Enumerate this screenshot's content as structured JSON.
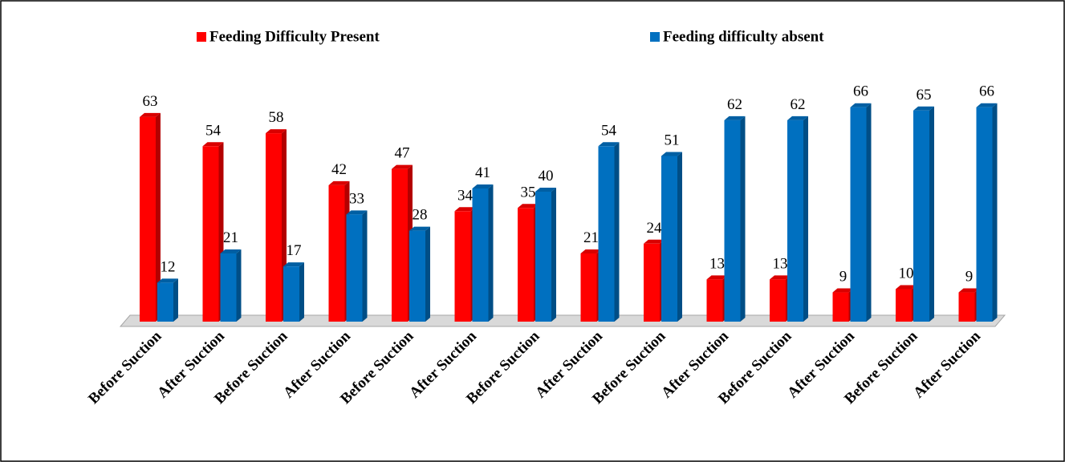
{
  "chart_data": {
    "type": "bar3d",
    "categories": [
      "Before Suction",
      "After Suction",
      "Before Suction",
      "After Suction",
      "Before Suction",
      "After Suction",
      "Before Suction",
      "After Suction",
      "Before Suction",
      "After Suction",
      "Before Suction",
      "After Suction",
      "Before Suction",
      "After Suction"
    ],
    "series": [
      {
        "name": "Feeding Difficulty Present",
        "color": "#ff0000",
        "values": [
          63,
          54,
          58,
          42,
          47,
          34,
          35,
          21,
          24,
          13,
          13,
          9,
          10,
          9
        ]
      },
      {
        "name": "Feeding difficulty absent",
        "color": "#0070c0",
        "values": [
          12,
          21,
          17,
          33,
          28,
          41,
          40,
          54,
          51,
          62,
          62,
          66,
          65,
          66
        ]
      }
    ],
    "legend": "top"
  }
}
